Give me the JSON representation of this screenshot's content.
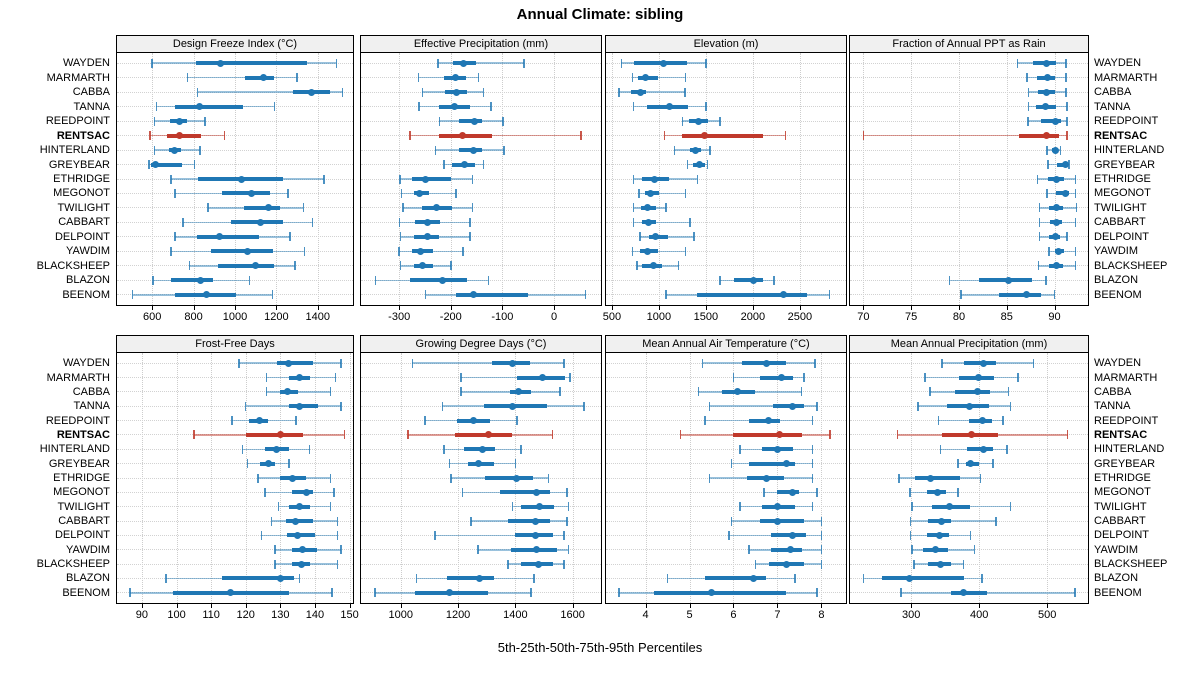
{
  "title": "Annual Climate: sibling",
  "caption": "5th-25th-50th-75th-95th Percentiles",
  "highlight_station": "RENTSAC",
  "colors": {
    "normal": "#1f77b4",
    "normal_whisker": "rgba(31,119,180,0.45)",
    "normal_cap": "rgba(31,119,180,0.8)",
    "highlight": "#c0392b",
    "highlight_whisker": "rgba(192,57,43,0.5)",
    "highlight_cap": "rgba(192,57,43,0.85)",
    "strip_bg": "#f0f0f0",
    "grid": "#cdcdcd",
    "border": "#000000"
  },
  "stations": [
    "WAYDEN",
    "MARMARTH",
    "CABBA",
    "TANNA",
    "REEDPOINT",
    "RENTSAC",
    "HINTERLAND",
    "GREYBEAR",
    "ETHRIDGE",
    "MEGONOT",
    "TWILIGHT",
    "CABBART",
    "DELPOINT",
    "YAWDIM",
    "BLACKSHEEP",
    "BLAZON",
    "BEENOM"
  ],
  "chart_data": {
    "type": "dotplot-percentiles",
    "percentiles": [
      5,
      25,
      50,
      75,
      95
    ],
    "legend_position": "none",
    "grid": "dotted",
    "panels": [
      {
        "title": "Design Freeze Index (°C)",
        "xlim": [
          430,
          1570
        ],
        "ticks": [
          600,
          800,
          1000,
          1200,
          1400
        ],
        "series": [
          [
            600,
            810,
            930,
            1350,
            1490
          ],
          [
            770,
            1050,
            1140,
            1190,
            1300
          ],
          [
            820,
            1280,
            1370,
            1460,
            1520
          ],
          [
            620,
            710,
            830,
            1040,
            1190
          ],
          [
            610,
            685,
            730,
            770,
            855
          ],
          [
            590,
            670,
            730,
            835,
            950
          ],
          [
            610,
            680,
            710,
            740,
            830
          ],
          [
            585,
            595,
            615,
            745,
            805
          ],
          [
            690,
            820,
            1030,
            1230,
            1430
          ],
          [
            710,
            935,
            1080,
            1170,
            1255
          ],
          [
            870,
            1045,
            1160,
            1215,
            1330
          ],
          [
            750,
            980,
            1125,
            1230,
            1375
          ],
          [
            710,
            815,
            925,
            1115,
            1265
          ],
          [
            690,
            885,
            1060,
            1185,
            1335
          ],
          [
            780,
            920,
            1100,
            1190,
            1290
          ],
          [
            605,
            690,
            835,
            895,
            1070
          ],
          [
            505,
            710,
            860,
            1005,
            1180
          ]
        ]
      },
      {
        "title": "Effective Precipitation (mm)",
        "xlim": [
          -374,
          91
        ],
        "ticks": [
          -300,
          -200,
          -100,
          0
        ],
        "series": [
          [
            -225,
            -196,
            -175,
            -152,
            -58
          ],
          [
            -263,
            -214,
            -190,
            -171,
            -146
          ],
          [
            -255,
            -212,
            -189,
            -168,
            -137
          ],
          [
            -262,
            -222,
            -192,
            -162,
            -122
          ],
          [
            -222,
            -184,
            -155,
            -140,
            -99
          ],
          [
            -279,
            -223,
            -178,
            -121,
            52
          ],
          [
            -230,
            -184,
            -157,
            -140,
            -97
          ],
          [
            -213,
            -197,
            -173,
            -154,
            -137
          ],
          [
            -298,
            -276,
            -249,
            -200,
            -158
          ],
          [
            -296,
            -272,
            -260,
            -243,
            -190
          ],
          [
            -293,
            -255,
            -228,
            -197,
            -158
          ],
          [
            -299,
            -270,
            -246,
            -220,
            -163
          ],
          [
            -297,
            -271,
            -245,
            -222,
            -163
          ],
          [
            -300,
            -275,
            -258,
            -235,
            -176
          ],
          [
            -297,
            -272,
            -255,
            -235,
            -200
          ],
          [
            -346,
            -279,
            -216,
            -168,
            -127
          ],
          [
            -249,
            -189,
            -157,
            -51,
            61
          ]
        ]
      },
      {
        "title": "Elevation (m)",
        "xlim": [
          437,
          2990
        ],
        "ticks": [
          500,
          1000,
          1500,
          2000,
          2500
        ],
        "series": [
          [
            600,
            740,
            1050,
            1295,
            1500
          ],
          [
            720,
            775,
            860,
            985,
            1285
          ],
          [
            575,
            705,
            800,
            860,
            1280
          ],
          [
            730,
            870,
            1110,
            1305,
            1500
          ],
          [
            1250,
            1315,
            1425,
            1520,
            1650
          ],
          [
            1060,
            1250,
            1485,
            2110,
            2345
          ],
          [
            1165,
            1330,
            1390,
            1445,
            1545
          ],
          [
            1305,
            1365,
            1435,
            1485,
            1515
          ],
          [
            730,
            820,
            950,
            1110,
            1410
          ],
          [
            790,
            855,
            915,
            1005,
            1285
          ],
          [
            730,
            810,
            880,
            965,
            1075
          ],
          [
            730,
            820,
            885,
            970,
            1330
          ],
          [
            800,
            890,
            965,
            1095,
            1375
          ],
          [
            720,
            800,
            880,
            985,
            1285
          ],
          [
            765,
            825,
            940,
            1035,
            1210
          ],
          [
            1650,
            1800,
            2005,
            2110,
            2225
          ],
          [
            1075,
            1400,
            2320,
            2580,
            2815
          ]
        ]
      },
      {
        "title": "Fraction of Annual PPT as Rain",
        "xlim": [
          68.6,
          93.5
        ],
        "ticks": [
          70,
          75,
          80,
          85,
          90
        ],
        "series": [
          [
            86.1,
            87.7,
            89.2,
            90.2,
            91.2
          ],
          [
            87.1,
            88.2,
            89.3,
            90.1,
            91.2
          ],
          [
            87.3,
            88.3,
            89.2,
            90.0,
            91.2
          ],
          [
            87.3,
            88.1,
            89.1,
            90.2,
            91.3
          ],
          [
            87.2,
            88.6,
            90.1,
            90.7,
            91.3
          ],
          [
            70.0,
            86.3,
            89.2,
            90.5,
            91.3
          ],
          [
            89.2,
            89.7,
            90.1,
            90.3,
            90.6
          ],
          [
            89.3,
            90.3,
            91.1,
            91.3,
            91.5
          ],
          [
            88.2,
            89.3,
            90.2,
            91.0,
            92.2
          ],
          [
            89.2,
            90.2,
            91.1,
            91.5,
            92.2
          ],
          [
            88.4,
            89.4,
            90.2,
            90.9,
            92.3
          ],
          [
            88.4,
            89.5,
            90.2,
            90.8,
            92.2
          ],
          [
            88.4,
            89.4,
            90.1,
            90.6,
            91.3
          ],
          [
            89.4,
            90.0,
            90.4,
            91.0,
            92.2
          ],
          [
            88.3,
            89.4,
            90.2,
            90.9,
            92.2
          ],
          [
            79.0,
            82.1,
            85.2,
            87.6,
            89.1
          ],
          [
            80.2,
            84.2,
            87.1,
            88.6,
            90.0
          ]
        ]
      },
      {
        "title": "Frost-Free Days",
        "xlim": [
          82.8,
          151
        ],
        "ticks": [
          90,
          100,
          110,
          120,
          130,
          140,
          150
        ],
        "series": [
          [
            118,
            129,
            132.5,
            139.5,
            147.5
          ],
          [
            126,
            132.5,
            135.5,
            138.5,
            146
          ],
          [
            126,
            130,
            132,
            135,
            144.5
          ],
          [
            120,
            132.5,
            135.5,
            141,
            147.5
          ],
          [
            116,
            121,
            124,
            126.5,
            134.5
          ],
          [
            105,
            120,
            130,
            136.5,
            148.5
          ],
          [
            119,
            125.5,
            129,
            132.5,
            138.5
          ],
          [
            120.5,
            124,
            126.5,
            128.5,
            132.5
          ],
          [
            123.5,
            130,
            133.5,
            137.5,
            144.5
          ],
          [
            125.5,
            133.5,
            137.5,
            139.5,
            145.5
          ],
          [
            129.5,
            132.5,
            135.5,
            138.5,
            144.5
          ],
          [
            127.5,
            131.5,
            134.5,
            139.5,
            146.5
          ],
          [
            124.5,
            132,
            135,
            140,
            146.5
          ],
          [
            128.5,
            133.5,
            136.5,
            140.5,
            147.5
          ],
          [
            128.5,
            133.5,
            136,
            138.5,
            146.5
          ],
          [
            97,
            113,
            130,
            134,
            135.5
          ],
          [
            86.5,
            99,
            115.5,
            132.5,
            145
          ]
        ]
      },
      {
        "title": "Growing Degree Days (°C)",
        "xlim": [
          861,
          1699
        ],
        "ticks": [
          1000,
          1200,
          1400,
          1600
        ],
        "series": [
          [
            1040,
            1320,
            1390,
            1450,
            1570
          ],
          [
            1210,
            1405,
            1495,
            1575,
            1590
          ],
          [
            1210,
            1380,
            1410,
            1455,
            1555
          ],
          [
            1145,
            1290,
            1390,
            1510,
            1640
          ],
          [
            1085,
            1195,
            1255,
            1310,
            1405
          ],
          [
            1025,
            1190,
            1305,
            1390,
            1530
          ],
          [
            1150,
            1220,
            1285,
            1330,
            1420
          ],
          [
            1170,
            1235,
            1270,
            1325,
            1400
          ],
          [
            1175,
            1295,
            1405,
            1460,
            1515
          ],
          [
            1215,
            1345,
            1475,
            1520,
            1580
          ],
          [
            1390,
            1420,
            1485,
            1535,
            1585
          ],
          [
            1245,
            1375,
            1470,
            1520,
            1580
          ],
          [
            1120,
            1400,
            1470,
            1530,
            1570
          ],
          [
            1270,
            1385,
            1475,
            1545,
            1585
          ],
          [
            1375,
            1420,
            1480,
            1530,
            1570
          ],
          [
            1055,
            1160,
            1275,
            1325,
            1465
          ],
          [
            910,
            1050,
            1170,
            1305,
            1455
          ]
        ]
      },
      {
        "title": "Mean Annual Air Temperature (°C)",
        "xlim": [
          3.1,
          8.56
        ],
        "ticks": [
          4,
          5,
          6,
          7,
          8
        ],
        "series": [
          [
            5.3,
            6.2,
            6.75,
            7.2,
            7.85
          ],
          [
            6.0,
            6.6,
            7.1,
            7.35,
            7.6
          ],
          [
            5.2,
            5.75,
            6.1,
            6.5,
            7.55
          ],
          [
            5.45,
            6.9,
            7.35,
            7.6,
            7.9
          ],
          [
            5.35,
            6.35,
            6.8,
            7.05,
            7.8
          ],
          [
            4.8,
            6.0,
            7.05,
            7.55,
            8.2
          ],
          [
            6.15,
            6.65,
            7.0,
            7.35,
            7.8
          ],
          [
            5.95,
            6.35,
            7.2,
            7.4,
            7.8
          ],
          [
            5.45,
            6.3,
            6.75,
            7.15,
            7.8
          ],
          [
            6.7,
            7.0,
            7.35,
            7.5,
            7.9
          ],
          [
            6.15,
            6.65,
            7.0,
            7.4,
            7.8
          ],
          [
            5.95,
            6.6,
            7.0,
            7.6,
            8.0
          ],
          [
            5.9,
            6.85,
            7.35,
            7.65,
            8.0
          ],
          [
            6.35,
            6.85,
            7.3,
            7.55,
            8.0
          ],
          [
            6.5,
            6.8,
            7.2,
            7.6,
            8.0
          ],
          [
            4.5,
            5.35,
            6.45,
            6.75,
            7.4
          ],
          [
            3.4,
            4.2,
            5.5,
            7.2,
            7.9
          ]
        ]
      },
      {
        "title": "Mean Annual Precipitation (mm)",
        "xlim": [
          210,
          560
        ],
        "ticks": [
          300,
          400,
          500
        ],
        "series": [
          [
            345,
            378,
            406,
            425,
            480
          ],
          [
            320,
            370,
            399,
            422,
            457
          ],
          [
            328,
            365,
            398,
            416,
            443
          ],
          [
            310,
            353,
            386,
            415,
            446
          ],
          [
            340,
            385,
            405,
            419,
            435
          ],
          [
            280,
            345,
            388,
            427,
            530
          ],
          [
            343,
            382,
            406,
            420,
            441
          ],
          [
            369,
            381,
            387,
            399,
            420
          ],
          [
            282,
            306,
            328,
            372,
            402
          ],
          [
            298,
            323,
            338,
            351,
            369
          ],
          [
            301,
            330,
            356,
            387,
            446
          ],
          [
            299,
            325,
            345,
            358,
            425
          ],
          [
            299,
            323,
            341,
            356,
            387
          ],
          [
            301,
            317,
            336,
            354,
            393
          ],
          [
            304,
            325,
            343,
            359,
            377
          ],
          [
            230,
            257,
            298,
            377,
            404
          ],
          [
            285,
            358,
            377,
            411,
            541
          ]
        ]
      }
    ]
  }
}
